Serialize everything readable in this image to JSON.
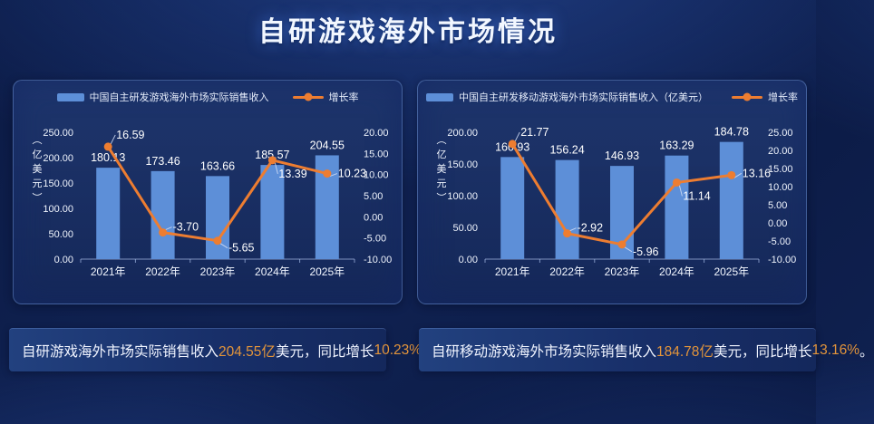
{
  "page_title": "自研游戏海外市场情况",
  "colors": {
    "bar": "#5D8FD8",
    "line": "#ED7D31",
    "highlight": "#E2943B"
  },
  "chart_data": [
    {
      "type": "bar+line",
      "categories": [
        "2021年",
        "2022年",
        "2023年",
        "2024年",
        "2025年"
      ],
      "series": [
        {
          "name": "中国自主研发游戏海外市场实际销售收入",
          "type": "bar",
          "axis": "left",
          "values": [
            180.13,
            173.46,
            163.66,
            185.57,
            204.55
          ]
        },
        {
          "name": "增长率",
          "type": "line",
          "axis": "right",
          "values": [
            16.59,
            -3.7,
            -5.65,
            13.39,
            10.23
          ]
        }
      ],
      "left_axis": {
        "min": 0,
        "max": 250,
        "step": 50,
        "unit": "（亿美元）"
      },
      "right_axis": {
        "min": -10,
        "max": 20,
        "step": 5
      },
      "legend_position": "top",
      "grid": false
    },
    {
      "type": "bar+line",
      "categories": [
        "2021年",
        "2022年",
        "2023年",
        "2024年",
        "2025年"
      ],
      "series": [
        {
          "name": "中国自主研发移动游戏海外市场实际销售收入（亿美元）",
          "type": "bar",
          "axis": "left",
          "values": [
            160.93,
            156.24,
            146.93,
            163.29,
            184.78
          ]
        },
        {
          "name": "增长率",
          "type": "line",
          "axis": "right",
          "values": [
            21.77,
            -2.92,
            -5.96,
            11.14,
            13.16
          ]
        }
      ],
      "left_axis": {
        "min": 0,
        "max": 200,
        "step": 50,
        "unit": "（亿美元）"
      },
      "right_axis": {
        "min": -10,
        "max": 25,
        "step": 5
      },
      "legend_position": "top",
      "grid": false
    }
  ],
  "summaries": [
    {
      "segments": [
        {
          "text": "自研游戏海外市场实际销售收入",
          "highlight": false
        },
        {
          "text": "204.55亿",
          "highlight": true
        },
        {
          "text": "美元，同比增长",
          "highlight": false
        },
        {
          "text": "10.23%",
          "highlight": true
        },
        {
          "text": " 。",
          "highlight": false
        }
      ]
    },
    {
      "segments": [
        {
          "text": "自研移动游戏海外市场实际销售收入",
          "highlight": false
        },
        {
          "text": "184.78亿",
          "highlight": true
        },
        {
          "text": "美元，同比增长",
          "highlight": false
        },
        {
          "text": "13.16%",
          "highlight": true
        },
        {
          "text": "。",
          "highlight": false
        }
      ]
    }
  ]
}
